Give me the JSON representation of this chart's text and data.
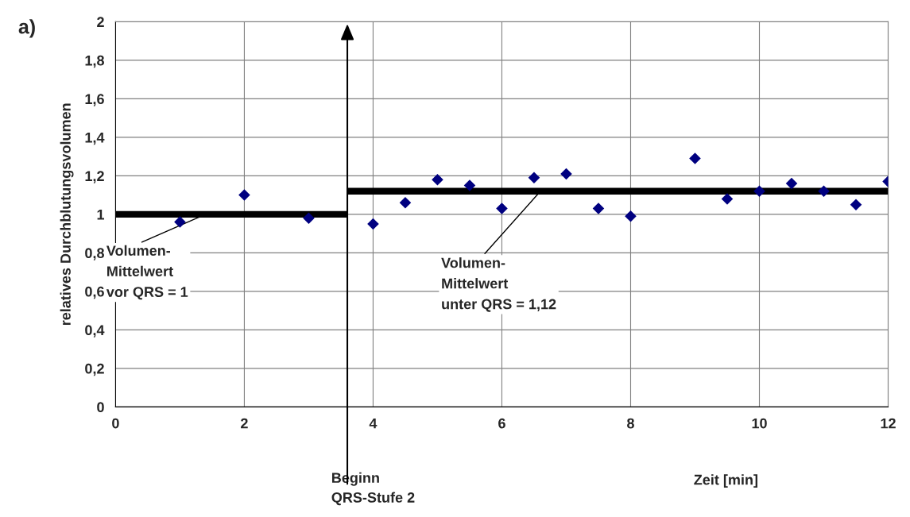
{
  "chart_data": {
    "type": "scatter",
    "title": "a)",
    "xlabel": "Zeit [min]",
    "ylabel": "relatives Durchblutungsvolumen",
    "xlim": [
      0,
      12
    ],
    "xticks": [
      0,
      2,
      4,
      6,
      8,
      10,
      12
    ],
    "ylim": [
      0,
      2
    ],
    "yticks": [
      {
        "value": 0,
        "label": "0"
      },
      {
        "value": 0.2,
        "label": "0,2"
      },
      {
        "value": 0.4,
        "label": "0,4"
      },
      {
        "value": 0.6,
        "label": "0,6"
      },
      {
        "value": 0.8,
        "label": "0,8"
      },
      {
        "value": 1,
        "label": "1"
      },
      {
        "value": 1.2,
        "label": "1,2"
      },
      {
        "value": 1.4,
        "label": "1,4"
      },
      {
        "value": 1.6,
        "label": "1,6"
      },
      {
        "value": 1.8,
        "label": "1,8"
      },
      {
        "value": 2,
        "label": "2"
      }
    ],
    "grid": true,
    "marker": "diamond",
    "series": [
      {
        "color": "#000080",
        "x": [
          1,
          2,
          3,
          4,
          4.5,
          5,
          5.5,
          6,
          6.5,
          7,
          7.5,
          8,
          9,
          9.5,
          10,
          10.5,
          11,
          11.5,
          12
        ],
        "values": [
          0.96,
          1.1,
          0.98,
          0.95,
          1.06,
          1.18,
          1.15,
          1.03,
          1.19,
          1.21,
          1.03,
          0.99,
          1.29,
          1.08,
          1.12,
          1.16,
          1.12,
          1.05,
          1.17
        ]
      },
      {
        "type": "line",
        "marker": "none",
        "color": "#000000",
        "x": [
          0,
          3.6
        ],
        "values": [
          1,
          1
        ]
      },
      {
        "type": "line",
        "marker": "none",
        "color": "#000000",
        "x": [
          3.6,
          12
        ],
        "values": [
          1.12,
          1.12
        ]
      }
    ],
    "ref_lines": [
      {
        "axis": "x",
        "value": 3.6,
        "label": "Beginn\nQRS-Stufe 2",
        "color": "#000000"
      }
    ],
    "annotations": [
      {
        "text": "Volumen-\nMittelwert\nvor QRS = 1",
        "x": 1.4,
        "y": 1
      },
      {
        "text": "Volumen-\nMittelwert\nunter QRS = 1,12",
        "x": 6.6,
        "y": 1.12
      }
    ]
  }
}
